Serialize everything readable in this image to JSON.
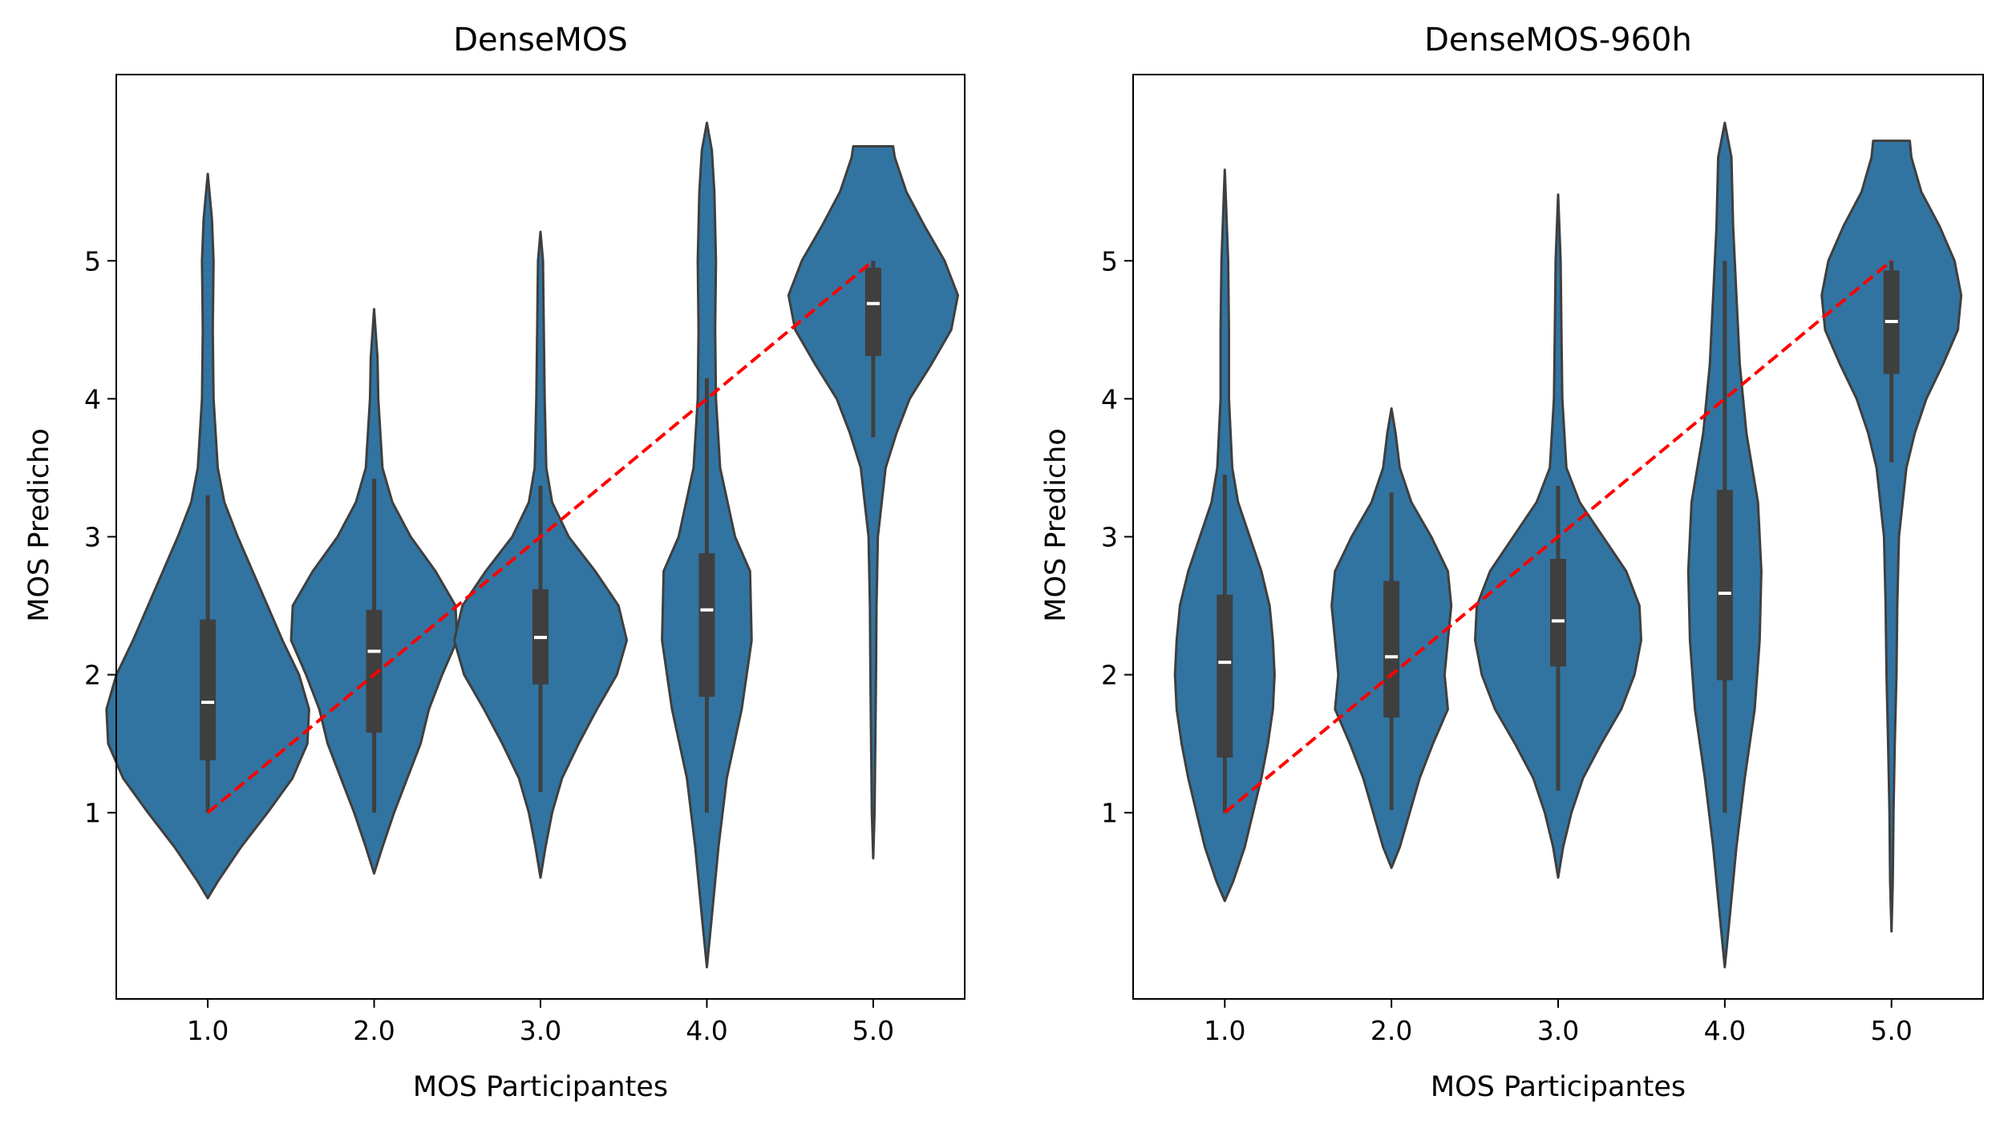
{
  "colors": {
    "violin_fill": "#3274a1",
    "violin_edge": "#3f3f3f",
    "box": "#3f3f3f",
    "median": "#ffffff",
    "reference_line": "#ff0000"
  },
  "chart_data": [
    {
      "type": "violin",
      "title": "DenseMOS",
      "xlabel": "MOS Participantes",
      "ylabel": "MOS Predicho",
      "categories": [
        "1.0",
        "2.0",
        "3.0",
        "4.0",
        "5.0"
      ],
      "yticks": [
        "1",
        "2",
        "3",
        "4",
        "5"
      ],
      "ylim": [
        -0.35,
        6.35
      ],
      "grid": false,
      "reference_line": {
        "from": [
          1,
          1
        ],
        "to": [
          5,
          5
        ],
        "style": "dashed",
        "color": "#ff0000"
      },
      "violins": [
        {
          "category": "1.0",
          "min": 0.38,
          "max": 5.63,
          "q1": 1.38,
          "median": 1.8,
          "q3": 2.4,
          "whisker_low": 1.0,
          "whisker_high": 3.3,
          "profile": [
            [
              0.38,
              0.0
            ],
            [
              0.5,
              0.06
            ],
            [
              0.75,
              0.2
            ],
            [
              1.0,
              0.36
            ],
            [
              1.25,
              0.51
            ],
            [
              1.5,
              0.6
            ],
            [
              1.75,
              0.61
            ],
            [
              2.0,
              0.55
            ],
            [
              2.25,
              0.45
            ],
            [
              2.5,
              0.36
            ],
            [
              2.75,
              0.27
            ],
            [
              3.0,
              0.18
            ],
            [
              3.25,
              0.1
            ],
            [
              3.5,
              0.06
            ],
            [
              4.0,
              0.035
            ],
            [
              4.5,
              0.03
            ],
            [
              5.0,
              0.035
            ],
            [
              5.3,
              0.025
            ],
            [
              5.63,
              0.0
            ]
          ]
        },
        {
          "category": "2.0",
          "min": 0.56,
          "max": 4.65,
          "q1": 1.58,
          "median": 2.17,
          "q3": 2.47,
          "whisker_low": 1.0,
          "whisker_high": 3.42,
          "profile": [
            [
              0.56,
              0.0
            ],
            [
              0.75,
              0.05
            ],
            [
              1.0,
              0.12
            ],
            [
              1.25,
              0.2
            ],
            [
              1.5,
              0.28
            ],
            [
              1.75,
              0.33
            ],
            [
              2.0,
              0.41
            ],
            [
              2.25,
              0.5
            ],
            [
              2.5,
              0.49
            ],
            [
              2.75,
              0.37
            ],
            [
              3.0,
              0.22
            ],
            [
              3.25,
              0.11
            ],
            [
              3.5,
              0.05
            ],
            [
              4.0,
              0.025
            ],
            [
              4.3,
              0.02
            ],
            [
              4.65,
              0.0
            ]
          ]
        },
        {
          "category": "3.0",
          "min": 0.53,
          "max": 5.21,
          "q1": 1.93,
          "median": 2.27,
          "q3": 2.62,
          "whisker_low": 1.15,
          "whisker_high": 3.37,
          "profile": [
            [
              0.53,
              0.0
            ],
            [
              0.75,
              0.03
            ],
            [
              1.0,
              0.07
            ],
            [
              1.25,
              0.13
            ],
            [
              1.5,
              0.23
            ],
            [
              1.75,
              0.34
            ],
            [
              2.0,
              0.46
            ],
            [
              2.25,
              0.52
            ],
            [
              2.5,
              0.47
            ],
            [
              2.75,
              0.33
            ],
            [
              3.0,
              0.17
            ],
            [
              3.25,
              0.07
            ],
            [
              3.5,
              0.035
            ],
            [
              4.0,
              0.025
            ],
            [
              4.5,
              0.02
            ],
            [
              5.0,
              0.015
            ],
            [
              5.21,
              0.0
            ]
          ]
        },
        {
          "category": "4.0",
          "min": -0.12,
          "max": 6.0,
          "q1": 1.84,
          "median": 2.47,
          "q3": 2.88,
          "whisker_low": 1.0,
          "whisker_high": 4.15,
          "profile": [
            [
              -0.12,
              0.0
            ],
            [
              0.25,
              0.03
            ],
            [
              0.75,
              0.07
            ],
            [
              1.25,
              0.12
            ],
            [
              1.75,
              0.21
            ],
            [
              2.25,
              0.27
            ],
            [
              2.75,
              0.26
            ],
            [
              3.0,
              0.17
            ],
            [
              3.5,
              0.08
            ],
            [
              4.0,
              0.055
            ],
            [
              4.5,
              0.05
            ],
            [
              5.0,
              0.055
            ],
            [
              5.5,
              0.045
            ],
            [
              5.8,
              0.03
            ],
            [
              6.0,
              0.0
            ]
          ]
        },
        {
          "category": "5.0",
          "min": 0.67,
          "max": 5.83,
          "q1": 4.31,
          "median": 4.69,
          "q3": 4.95,
          "whisker_low": 3.72,
          "whisker_high": 5.0,
          "profile": [
            [
              0.67,
              0.0
            ],
            [
              1.0,
              0.008
            ],
            [
              2.0,
              0.017
            ],
            [
              2.5,
              0.02
            ],
            [
              3.0,
              0.028
            ],
            [
              3.5,
              0.075
            ],
            [
              3.75,
              0.14
            ],
            [
              4.0,
              0.22
            ],
            [
              4.25,
              0.35
            ],
            [
              4.5,
              0.47
            ],
            [
              4.75,
              0.51
            ],
            [
              5.0,
              0.43
            ],
            [
              5.25,
              0.31
            ],
            [
              5.5,
              0.2
            ],
            [
              5.75,
              0.13
            ],
            [
              5.83,
              0.12
            ]
          ]
        }
      ]
    },
    {
      "type": "violin",
      "title": "DenseMOS-960h",
      "xlabel": "MOS Participantes",
      "ylabel": "MOS Predicho",
      "categories": [
        "1.0",
        "2.0",
        "3.0",
        "4.0",
        "5.0"
      ],
      "yticks": [
        "1",
        "2",
        "3",
        "4",
        "5"
      ],
      "ylim": [
        -0.35,
        6.35
      ],
      "grid": false,
      "reference_line": {
        "from": [
          1,
          1
        ],
        "to": [
          5,
          5
        ],
        "style": "dashed",
        "color": "#ff0000"
      },
      "violins": [
        {
          "category": "1.0",
          "min": 0.36,
          "max": 5.66,
          "q1": 1.4,
          "median": 2.09,
          "q3": 2.58,
          "whisker_low": 1.0,
          "whisker_high": 3.45,
          "profile": [
            [
              0.36,
              0.0
            ],
            [
              0.5,
              0.05
            ],
            [
              0.75,
              0.12
            ],
            [
              1.0,
              0.17
            ],
            [
              1.25,
              0.22
            ],
            [
              1.5,
              0.26
            ],
            [
              1.75,
              0.29
            ],
            [
              2.0,
              0.3
            ],
            [
              2.25,
              0.29
            ],
            [
              2.5,
              0.27
            ],
            [
              2.75,
              0.22
            ],
            [
              3.0,
              0.15
            ],
            [
              3.25,
              0.08
            ],
            [
              3.5,
              0.045
            ],
            [
              4.0,
              0.025
            ],
            [
              4.5,
              0.025
            ],
            [
              5.0,
              0.02
            ],
            [
              5.66,
              0.0
            ]
          ]
        },
        {
          "category": "2.0",
          "min": 0.6,
          "max": 3.93,
          "q1": 1.69,
          "median": 2.13,
          "q3": 2.68,
          "whisker_low": 1.02,
          "whisker_high": 3.32,
          "profile": [
            [
              0.6,
              0.0
            ],
            [
              0.75,
              0.05
            ],
            [
              1.0,
              0.11
            ],
            [
              1.25,
              0.17
            ],
            [
              1.5,
              0.25
            ],
            [
              1.75,
              0.34
            ],
            [
              2.0,
              0.32
            ],
            [
              2.25,
              0.34
            ],
            [
              2.5,
              0.36
            ],
            [
              2.75,
              0.34
            ],
            [
              3.0,
              0.24
            ],
            [
              3.25,
              0.12
            ],
            [
              3.5,
              0.05
            ],
            [
              3.75,
              0.025
            ],
            [
              3.93,
              0.0
            ]
          ]
        },
        {
          "category": "3.0",
          "min": 0.53,
          "max": 5.48,
          "q1": 2.06,
          "median": 2.39,
          "q3": 2.84,
          "whisker_low": 1.16,
          "whisker_high": 3.37,
          "profile": [
            [
              0.53,
              0.0
            ],
            [
              0.75,
              0.03
            ],
            [
              1.0,
              0.08
            ],
            [
              1.25,
              0.15
            ],
            [
              1.5,
              0.26
            ],
            [
              1.75,
              0.38
            ],
            [
              2.0,
              0.46
            ],
            [
              2.25,
              0.5
            ],
            [
              2.5,
              0.49
            ],
            [
              2.75,
              0.41
            ],
            [
              3.0,
              0.27
            ],
            [
              3.25,
              0.13
            ],
            [
              3.5,
              0.05
            ],
            [
              4.0,
              0.025
            ],
            [
              4.5,
              0.02
            ],
            [
              5.0,
              0.015
            ],
            [
              5.48,
              0.0
            ]
          ]
        },
        {
          "category": "4.0",
          "min": -0.12,
          "max": 6.0,
          "q1": 1.96,
          "median": 2.59,
          "q3": 3.34,
          "whisker_low": 1.0,
          "whisker_high": 5.0,
          "profile": [
            [
              -0.12,
              0.0
            ],
            [
              0.25,
              0.03
            ],
            [
              0.75,
              0.07
            ],
            [
              1.25,
              0.12
            ],
            [
              1.75,
              0.18
            ],
            [
              2.25,
              0.21
            ],
            [
              2.75,
              0.22
            ],
            [
              3.25,
              0.2
            ],
            [
              3.75,
              0.13
            ],
            [
              4.25,
              0.09
            ],
            [
              4.75,
              0.07
            ],
            [
              5.25,
              0.05
            ],
            [
              5.75,
              0.04
            ],
            [
              6.0,
              0.0
            ]
          ]
        },
        {
          "category": "5.0",
          "min": 0.14,
          "max": 5.87,
          "q1": 4.18,
          "median": 4.56,
          "q3": 4.93,
          "whisker_low": 3.54,
          "whisker_high": 5.0,
          "profile": [
            [
              0.14,
              0.0
            ],
            [
              0.5,
              0.008
            ],
            [
              1.0,
              0.012
            ],
            [
              1.5,
              0.02
            ],
            [
              2.0,
              0.03
            ],
            [
              2.5,
              0.035
            ],
            [
              3.0,
              0.045
            ],
            [
              3.5,
              0.09
            ],
            [
              3.75,
              0.14
            ],
            [
              4.0,
              0.21
            ],
            [
              4.25,
              0.31
            ],
            [
              4.5,
              0.4
            ],
            [
              4.75,
              0.42
            ],
            [
              5.0,
              0.38
            ],
            [
              5.25,
              0.29
            ],
            [
              5.5,
              0.18
            ],
            [
              5.75,
              0.12
            ],
            [
              5.87,
              0.11
            ]
          ]
        }
      ]
    }
  ]
}
